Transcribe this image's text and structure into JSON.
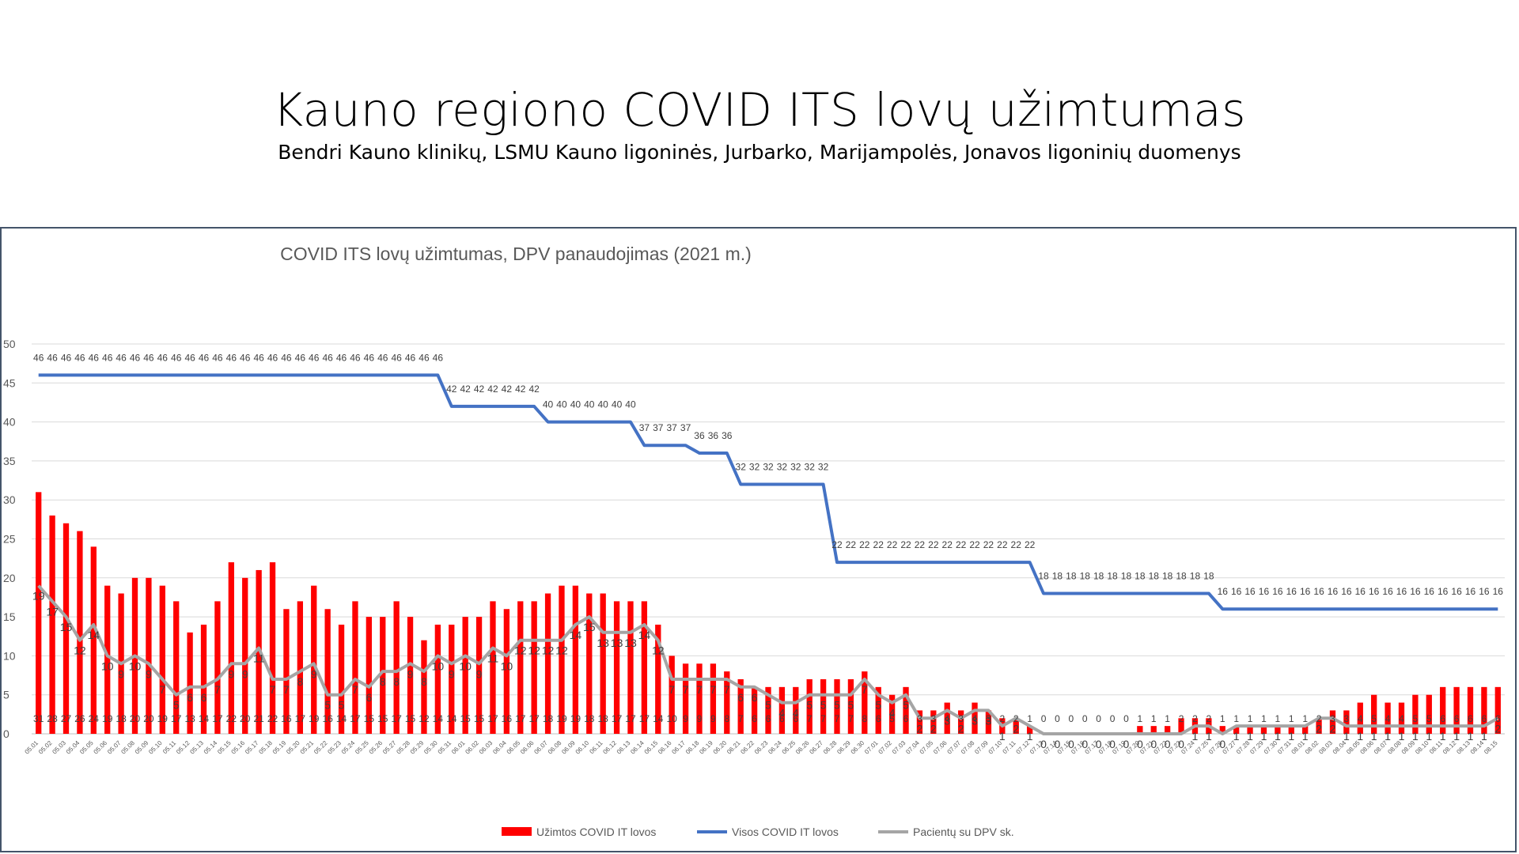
{
  "slide": {
    "title": "Kauno regiono COVID ITS lovų užimtumas",
    "subtitle": "Bendri Kauno klinikų, LSMU Kauno ligoninės, Jurbarko, Marijampolės, Jonavos ligoninių duomenys"
  },
  "chart_data": {
    "type": "bar",
    "title": "COVID ITS lovų užimtumas, DPV panaudojimas (2021 m.)",
    "xlabel": "",
    "ylabel": "",
    "ylim": [
      0,
      50
    ],
    "yticks": [
      0,
      5,
      10,
      15,
      20,
      25,
      30,
      35,
      40,
      45,
      50
    ],
    "grid": true,
    "legend_position": "bottom",
    "categories": [
      "05.01",
      "05.02",
      "05.03",
      "05.04",
      "05.05",
      "05.06",
      "05.07",
      "05.08",
      "05.09",
      "05.10",
      "05.11",
      "05.12",
      "05.13",
      "05.14",
      "05.15",
      "05.16",
      "05.17",
      "05.18",
      "05.19",
      "05.20",
      "05.21",
      "05.22",
      "05.23",
      "05.24",
      "05.25",
      "05.26",
      "05.27",
      "05.28",
      "05.29",
      "05.30",
      "05.31",
      "06.01",
      "06.02",
      "06.03",
      "06.04",
      "06.05",
      "06.06",
      "06.07",
      "06.08",
      "06.09",
      "06.10",
      "06.11",
      "06.12",
      "06.13",
      "06.14",
      "06.15",
      "06.16",
      "06.17",
      "06.18",
      "06.19",
      "06.20",
      "06.21",
      "06.22",
      "06.23",
      "06.24",
      "06.25",
      "06.26",
      "06.27",
      "06.28",
      "06.29",
      "06.30",
      "07.01",
      "07.02",
      "07.03",
      "07.04",
      "07.05",
      "07.06",
      "07.07",
      "07.08",
      "07.09",
      "07.10",
      "07.11",
      "07.12",
      "07.13",
      "07.14",
      "07.15",
      "07.16",
      "07.17",
      "07.18",
      "07.19",
      "07.20",
      "07.21",
      "07.22",
      "07.23",
      "07.24",
      "07.25",
      "07.26",
      "07.27",
      "07.28",
      "07.29",
      "07.30",
      "07.31",
      "08.01",
      "08.02",
      "08.03",
      "08.04",
      "08.05",
      "08.06",
      "08.07",
      "08.08",
      "08.09",
      "08.10",
      "08.11",
      "08.12",
      "08.13",
      "08.14",
      "08.15"
    ],
    "series": [
      {
        "name": "Užimtos COVID IT lovos",
        "type": "bar",
        "color": "#ff0000",
        "values": [
          31,
          28,
          27,
          26,
          24,
          19,
          18,
          20,
          20,
          19,
          17,
          13,
          14,
          17,
          22,
          20,
          21,
          22,
          16,
          17,
          19,
          16,
          14,
          17,
          15,
          15,
          17,
          15,
          12,
          14,
          14,
          15,
          15,
          17,
          16,
          17,
          17,
          18,
          19,
          19,
          18,
          18,
          17,
          17,
          17,
          14,
          10,
          9,
          9,
          9,
          8,
          7,
          6,
          6,
          6,
          6,
          7,
          7,
          7,
          7,
          8,
          6,
          5,
          6,
          3,
          3,
          4,
          3,
          4,
          3,
          2,
          2,
          1,
          0,
          0,
          0,
          0,
          0,
          0,
          0,
          1,
          1,
          1,
          2,
          2,
          2,
          1,
          1,
          1,
          1,
          1,
          1,
          1,
          2,
          3,
          3,
          4,
          5,
          4,
          4,
          5,
          5,
          6,
          6,
          6,
          6,
          6
        ]
      },
      {
        "name": "Visos COVID IT lovos",
        "type": "line",
        "color": "#4472c4",
        "values": [
          46,
          46,
          46,
          46,
          46,
          46,
          46,
          46,
          46,
          46,
          46,
          46,
          46,
          46,
          46,
          46,
          46,
          46,
          46,
          46,
          46,
          46,
          46,
          46,
          46,
          46,
          46,
          46,
          46,
          46,
          42,
          42,
          42,
          42,
          42,
          42,
          42,
          40,
          40,
          40,
          40,
          40,
          40,
          40,
          37,
          37,
          37,
          37,
          36,
          36,
          36,
          32,
          32,
          32,
          32,
          32,
          32,
          32,
          22,
          22,
          22,
          22,
          22,
          22,
          22,
          22,
          22,
          22,
          22,
          22,
          22,
          22,
          22,
          18,
          18,
          18,
          18,
          18,
          18,
          18,
          18,
          18,
          18,
          18,
          18,
          18,
          16,
          16,
          16,
          16,
          16,
          16,
          16,
          16,
          16,
          16,
          16,
          16,
          16,
          16,
          16,
          16,
          16,
          16,
          16,
          16,
          16
        ]
      },
      {
        "name": "Pacientų su DPV sk.",
        "type": "line",
        "color": "#a5a5a5",
        "values": [
          19,
          17,
          15,
          12,
          14,
          10,
          9,
          10,
          9,
          7,
          5,
          6,
          6,
          7,
          9,
          9,
          11,
          7,
          7,
          8,
          9,
          5,
          5,
          7,
          6,
          8,
          8,
          9,
          8,
          10,
          9,
          10,
          9,
          11,
          10,
          12,
          12,
          12,
          12,
          14,
          15,
          13,
          13,
          13,
          14,
          12,
          7,
          7,
          7,
          7,
          7,
          6,
          6,
          5,
          4,
          4,
          5,
          5,
          5,
          5,
          7,
          5,
          4,
          5,
          2,
          2,
          3,
          2,
          3,
          3,
          1,
          2,
          1,
          0,
          0,
          0,
          0,
          0,
          0,
          0,
          0,
          0,
          0,
          0,
          1,
          1,
          0,
          1,
          1,
          1,
          1,
          1,
          1,
          2,
          2,
          1,
          1,
          1,
          1,
          1,
          1,
          1,
          1,
          1,
          1,
          1,
          2
        ]
      }
    ]
  }
}
